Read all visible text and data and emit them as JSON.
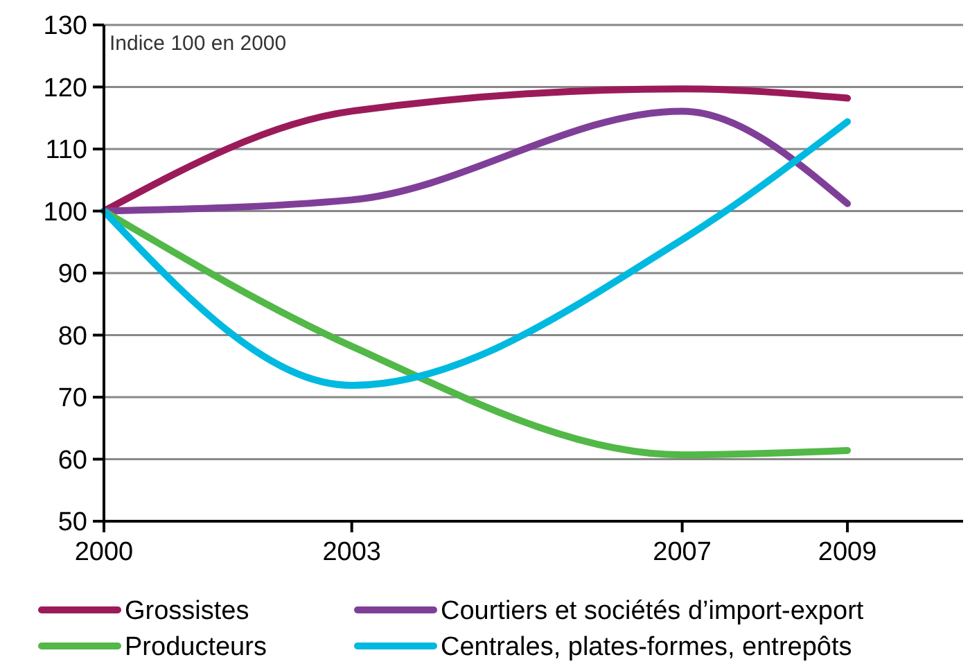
{
  "chart_data": {
    "type": "line",
    "annotations": [
      "Indice 100 en 2000"
    ],
    "x": [
      2000,
      2003,
      2007,
      2009
    ],
    "xlim": [
      2000,
      2010.4
    ],
    "xticks": [
      2000,
      2003,
      2007,
      2009
    ],
    "ylim": [
      50,
      130
    ],
    "yticks": [
      50,
      60,
      70,
      80,
      90,
      100,
      110,
      120,
      130
    ],
    "grid": "y",
    "legend": "bottom",
    "line_style": "solid",
    "marker": "none",
    "series": [
      {
        "name": "Grossistes",
        "color": "#9b1b5a",
        "values": [
          100,
          116.1,
          119.7,
          118.2
        ]
      },
      {
        "name": "Courtiers et sociétés d’import-export",
        "color": "#7f3f98",
        "values": [
          100,
          101.8,
          116.1,
          101.2
        ]
      },
      {
        "name": "Producteurs",
        "color": "#52b848",
        "values": [
          100,
          78.2,
          60.7,
          61.4
        ]
      },
      {
        "name": "Centrales, plates-formes, entrepôts",
        "color": "#00b9e0",
        "values": [
          100,
          71.9,
          95.4,
          114.4
        ]
      }
    ]
  }
}
